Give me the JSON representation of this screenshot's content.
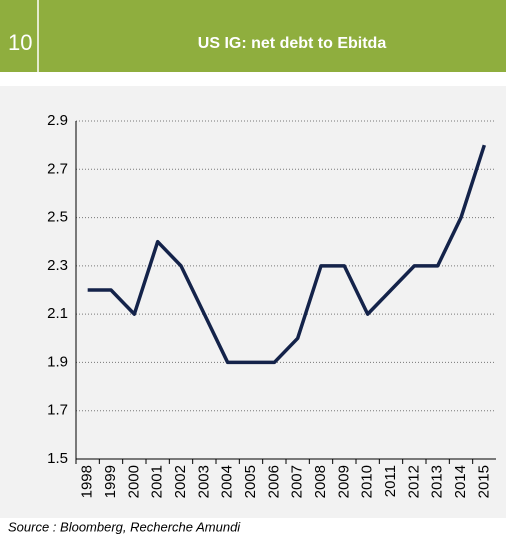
{
  "chart_data": {
    "type": "line",
    "figure_number": "10",
    "title": "US IG: net debt to Ebitda",
    "categories": [
      "1998",
      "1999",
      "2000",
      "2001",
      "2002",
      "2003",
      "2004",
      "2005",
      "2006",
      "2007",
      "2008",
      "2009",
      "2010",
      "2011",
      "2012",
      "2013",
      "2014",
      "2015"
    ],
    "values": [
      2.2,
      2.2,
      2.1,
      2.4,
      2.3,
      2.1,
      1.9,
      1.9,
      1.9,
      2.0,
      2.3,
      2.3,
      2.1,
      2.2,
      2.3,
      2.3,
      2.5,
      2.8
    ],
    "color": "#14234a",
    "ylim": [
      1.5,
      2.9
    ],
    "yticks": [
      1.5,
      1.7,
      1.9,
      2.1,
      2.3,
      2.5,
      2.7,
      2.9
    ],
    "grid": true,
    "source": "Source : Bloomberg, Recherche Amundi"
  }
}
